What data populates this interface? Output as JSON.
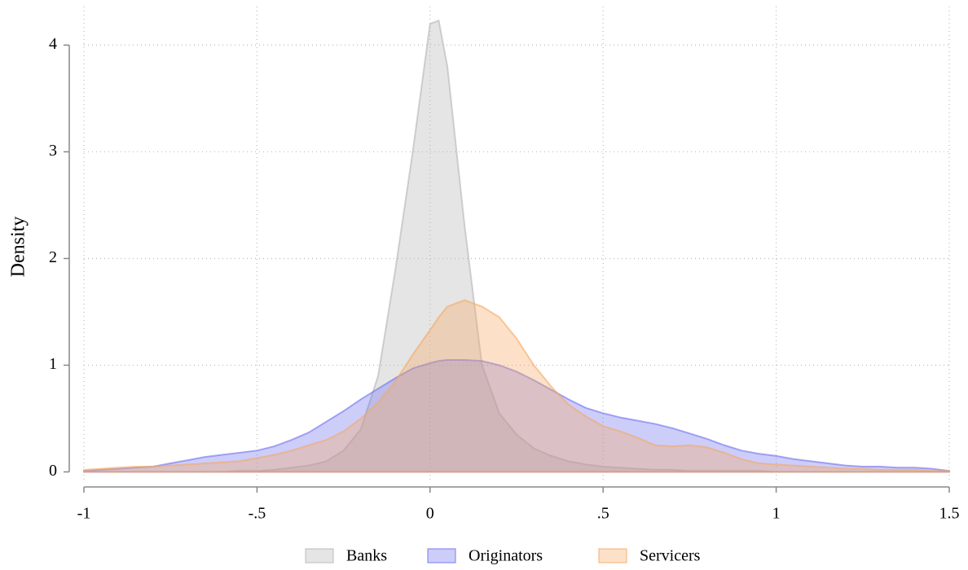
{
  "chart_data": {
    "type": "area",
    "y_label": "Density",
    "x": [
      -1,
      -0.95,
      -0.9,
      -0.85,
      -0.8,
      -0.75,
      -0.7,
      -0.65,
      -0.6,
      -0.55,
      -0.5,
      -0.45,
      -0.4,
      -0.35,
      -0.3,
      -0.25,
      -0.2,
      -0.15,
      -0.1,
      -0.05,
      0,
      0.025,
      0.05,
      0.1,
      0.15,
      0.2,
      0.25,
      0.3,
      0.35,
      0.4,
      0.45,
      0.5,
      0.55,
      0.6,
      0.65,
      0.7,
      0.75,
      0.8,
      0.85,
      0.9,
      0.95,
      1,
      1.05,
      1.1,
      1.15,
      1.2,
      1.25,
      1.3,
      1.35,
      1.4,
      1.45,
      1.5
    ],
    "series": [
      {
        "name": "Banks",
        "color": "#b4b4b4",
        "values": [
          0,
          0,
          0,
          0,
          0,
          0,
          0,
          0,
          0,
          0.01,
          0.01,
          0.02,
          0.04,
          0.06,
          0.1,
          0.2,
          0.4,
          0.9,
          1.9,
          3.0,
          4.2,
          4.23,
          3.8,
          2.3,
          1.0,
          0.55,
          0.35,
          0.22,
          0.15,
          0.1,
          0.07,
          0.05,
          0.04,
          0.03,
          0.02,
          0.02,
          0.01,
          0.01,
          0.01,
          0.01,
          0.01,
          0,
          0,
          0,
          0,
          0,
          0,
          0,
          0,
          0,
          0,
          0
        ]
      },
      {
        "name": "Originators",
        "color": "#7070f0",
        "values": [
          0.01,
          0.02,
          0.03,
          0.04,
          0.05,
          0.08,
          0.11,
          0.14,
          0.16,
          0.18,
          0.2,
          0.24,
          0.3,
          0.37,
          0.47,
          0.57,
          0.68,
          0.78,
          0.88,
          0.97,
          1.02,
          1.04,
          1.05,
          1.05,
          1.04,
          1.0,
          0.94,
          0.86,
          0.77,
          0.68,
          0.6,
          0.55,
          0.51,
          0.48,
          0.45,
          0.41,
          0.36,
          0.31,
          0.25,
          0.2,
          0.17,
          0.15,
          0.12,
          0.1,
          0.08,
          0.06,
          0.05,
          0.05,
          0.04,
          0.04,
          0.03,
          0.01
        ]
      },
      {
        "name": "Servicers",
        "color": "#f5a860",
        "values": [
          0.02,
          0.03,
          0.04,
          0.05,
          0.05,
          0.06,
          0.07,
          0.08,
          0.09,
          0.1,
          0.13,
          0.16,
          0.2,
          0.25,
          0.3,
          0.38,
          0.5,
          0.65,
          0.85,
          1.1,
          1.33,
          1.45,
          1.55,
          1.61,
          1.55,
          1.45,
          1.25,
          1.0,
          0.8,
          0.63,
          0.52,
          0.43,
          0.38,
          0.32,
          0.25,
          0.24,
          0.25,
          0.23,
          0.18,
          0.12,
          0.08,
          0.07,
          0.06,
          0.05,
          0.04,
          0.03,
          0.03,
          0.02,
          0.02,
          0.02,
          0.01,
          0.01
        ]
      }
    ],
    "xlim": [
      -1,
      1.5
    ],
    "xticks": [
      -1,
      {
        "value": -0.5,
        "label": "-.5"
      },
      0,
      {
        "value": 0.5,
        "label": ".5"
      },
      1,
      1.5
    ],
    "ylim": [
      -0.08,
      4.4
    ],
    "yticks": [
      0,
      1,
      2,
      3,
      4
    ],
    "grid": true,
    "legend": "bottom"
  }
}
